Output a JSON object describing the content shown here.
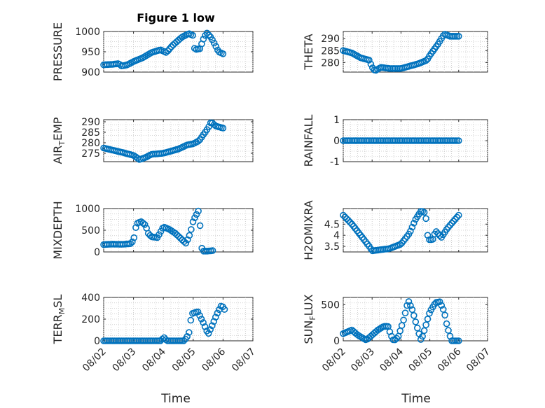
{
  "figure": {
    "title": "Figure 1 low"
  },
  "chart_data": [
    {
      "type": "scatter",
      "ylabel": "PRESSURE",
      "ylim": [
        900,
        1000
      ],
      "yticks": [
        900,
        950,
        1000
      ],
      "ytick_labels": [
        "900",
        "950",
        "1000"
      ],
      "xlim": [
        0,
        5
      ],
      "xticks": [
        0,
        1,
        2,
        3,
        4,
        5
      ],
      "xtick_labels": [
        "08/02",
        "08/03",
        "08/04",
        "08/05",
        "08/06",
        "08/07"
      ],
      "show_xticklabels": false,
      "grid": true,
      "marker": "circle-open",
      "knots": [
        [
          0,
          918
        ],
        [
          0.3,
          919
        ],
        [
          0.5,
          921
        ],
        [
          0.6,
          915
        ],
        [
          0.8,
          918
        ],
        [
          1.0,
          926
        ],
        [
          1.3,
          935
        ],
        [
          1.6,
          948
        ],
        [
          1.9,
          955
        ],
        [
          2.1,
          948
        ],
        [
          2.3,
          965
        ],
        [
          2.6,
          985
        ],
        [
          2.85,
          995
        ],
        [
          3.0,
          990
        ],
        [
          3.05,
          955
        ],
        [
          3.25,
          958
        ],
        [
          3.3,
          975
        ],
        [
          3.45,
          997
        ],
        [
          3.6,
          985
        ],
        [
          3.75,
          965
        ],
        [
          3.85,
          950
        ],
        [
          4.0,
          945
        ]
      ]
    },
    {
      "type": "scatter",
      "ylabel": "THETA",
      "ylim": [
        276,
        293
      ],
      "yticks": [
        280,
        285,
        290
      ],
      "ytick_labels": [
        "280",
        "285",
        "290"
      ],
      "xlim": [
        0,
        5
      ],
      "xticks": [
        0,
        1,
        2,
        3,
        4,
        5
      ],
      "xtick_labels": [
        "08/02",
        "08/03",
        "08/04",
        "08/05",
        "08/06",
        "08/07"
      ],
      "show_xticklabels": false,
      "grid": true,
      "marker": "circle-open",
      "knots": [
        [
          0,
          285
        ],
        [
          0.3,
          284
        ],
        [
          0.6,
          282
        ],
        [
          0.9,
          281
        ],
        [
          1.0,
          278
        ],
        [
          1.1,
          276.5
        ],
        [
          1.3,
          278
        ],
        [
          1.6,
          277.5
        ],
        [
          2.0,
          277.5
        ],
        [
          2.3,
          278.5
        ],
        [
          2.6,
          279.5
        ],
        [
          2.9,
          281
        ],
        [
          3.0,
          283
        ],
        [
          3.3,
          288
        ],
        [
          3.5,
          292
        ],
        [
          3.7,
          291
        ],
        [
          4.0,
          291
        ]
      ]
    },
    {
      "type": "scatter",
      "ylabel_main": "AIR",
      "ylabel_sub": "T",
      "ylabel_rest": "EMP",
      "ylim": [
        271,
        291
      ],
      "yticks": [
        275,
        280,
        285,
        290
      ],
      "ytick_labels": [
        "275",
        "280",
        "285",
        "290"
      ],
      "xlim": [
        0,
        5
      ],
      "xticks": [
        0,
        1,
        2,
        3,
        4,
        5
      ],
      "xtick_labels": [
        "08/02",
        "08/03",
        "08/04",
        "08/05",
        "08/06",
        "08/07"
      ],
      "show_xticklabels": false,
      "grid": true,
      "marker": "circle-open",
      "knots": [
        [
          0,
          277.5
        ],
        [
          0.3,
          276.5
        ],
        [
          0.6,
          275.5
        ],
        [
          1.0,
          274
        ],
        [
          1.2,
          272
        ],
        [
          1.4,
          273
        ],
        [
          1.6,
          274.5
        ],
        [
          2.0,
          275
        ],
        [
          2.5,
          277
        ],
        [
          2.8,
          279
        ],
        [
          3.0,
          279.5
        ],
        [
          3.2,
          281
        ],
        [
          3.5,
          287
        ],
        [
          3.6,
          290
        ],
        [
          3.75,
          288
        ],
        [
          4.0,
          287
        ]
      ]
    },
    {
      "type": "scatter",
      "ylabel": "RAINFALL",
      "ylim": [
        -1,
        1
      ],
      "yticks": [
        -1,
        0,
        1
      ],
      "ytick_labels": [
        "-1",
        "0",
        "1"
      ],
      "xlim": [
        0,
        5
      ],
      "xticks": [
        0,
        1,
        2,
        3,
        4,
        5
      ],
      "xtick_labels": [
        "08/02",
        "08/03",
        "08/04",
        "08/05",
        "08/06",
        "08/07"
      ],
      "show_xticklabels": false,
      "grid": true,
      "marker": "circle-open",
      "knots": [
        [
          0,
          0
        ],
        [
          4.0,
          0
        ]
      ]
    },
    {
      "type": "scatter",
      "ylabel": "MIXDEPTH",
      "ylim": [
        0,
        1000
      ],
      "yticks": [
        0,
        500,
        1000
      ],
      "ytick_labels": [
        "0",
        "500",
        "1000"
      ],
      "xlim": [
        0,
        5
      ],
      "xticks": [
        0,
        1,
        2,
        3,
        4,
        5
      ],
      "xtick_labels": [
        "08/02",
        "08/03",
        "08/04",
        "08/05",
        "08/06",
        "08/07"
      ],
      "show_xticklabels": false,
      "grid": true,
      "marker": "circle-open",
      "knots": [
        [
          0,
          170
        ],
        [
          0.3,
          180
        ],
        [
          0.6,
          175
        ],
        [
          0.9,
          190
        ],
        [
          1.0,
          260
        ],
        [
          1.1,
          650
        ],
        [
          1.25,
          700
        ],
        [
          1.4,
          620
        ],
        [
          1.5,
          420
        ],
        [
          1.6,
          350
        ],
        [
          1.8,
          330
        ],
        [
          2.0,
          580
        ],
        [
          2.2,
          520
        ],
        [
          2.4,
          430
        ],
        [
          2.6,
          300
        ],
        [
          2.75,
          200
        ],
        [
          2.85,
          330
        ],
        [
          2.95,
          560
        ],
        [
          3.0,
          720
        ],
        [
          3.1,
          850
        ],
        [
          3.2,
          980
        ],
        [
          3.25,
          380
        ],
        [
          3.3,
          20
        ],
        [
          3.5,
          20
        ],
        [
          3.65,
          30
        ]
      ]
    },
    {
      "type": "scatter",
      "ylabel": "H2OMIXRA",
      "ylim": [
        3.25,
        5.2
      ],
      "yticks": [
        3.5,
        4,
        4.5
      ],
      "ytick_labels": [
        "3.5",
        "4",
        "4.5"
      ],
      "xlim": [
        0,
        5
      ],
      "xticks": [
        0,
        1,
        2,
        3,
        4,
        5
      ],
      "xtick_labels": [
        "08/02",
        "08/03",
        "08/04",
        "08/05",
        "08/06",
        "08/07"
      ],
      "show_xticklabels": false,
      "grid": true,
      "marker": "circle-open",
      "knots": [
        [
          0,
          4.9
        ],
        [
          0.3,
          4.5
        ],
        [
          0.6,
          4.0
        ],
        [
          0.9,
          3.5
        ],
        [
          1.0,
          3.3
        ],
        [
          1.3,
          3.35
        ],
        [
          1.6,
          3.4
        ],
        [
          2.0,
          3.6
        ],
        [
          2.3,
          4.1
        ],
        [
          2.5,
          4.7
        ],
        [
          2.7,
          5.1
        ],
        [
          2.85,
          5.0
        ],
        [
          2.9,
          4.2
        ],
        [
          2.95,
          3.8
        ],
        [
          3.1,
          3.8
        ],
        [
          3.2,
          4.2
        ],
        [
          3.4,
          3.9
        ],
        [
          3.6,
          4.3
        ],
        [
          3.8,
          4.6
        ],
        [
          4.0,
          4.9
        ]
      ]
    },
    {
      "type": "scatter",
      "ylabel_main": "TERR",
      "ylabel_sub": "M",
      "ylabel_rest": "SL",
      "ylim": [
        0,
        400
      ],
      "yticks": [
        0,
        200,
        400
      ],
      "ytick_labels": [
        "0",
        "200",
        "400"
      ],
      "xlim": [
        0,
        5
      ],
      "xticks": [
        0,
        1,
        2,
        3,
        4,
        5
      ],
      "xtick_labels": [
        "08/02",
        "08/03",
        "08/04",
        "08/05",
        "08/06",
        "08/07"
      ],
      "show_xticklabels": true,
      "grid": true,
      "marker": "circle-open",
      "knots": [
        [
          0,
          0
        ],
        [
          1.9,
          0
        ],
        [
          2.05,
          35
        ],
        [
          2.1,
          0
        ],
        [
          2.7,
          0
        ],
        [
          2.85,
          60
        ],
        [
          2.95,
          250
        ],
        [
          3.15,
          270
        ],
        [
          3.35,
          160
        ],
        [
          3.5,
          60
        ],
        [
          3.65,
          150
        ],
        [
          3.8,
          250
        ],
        [
          3.95,
          330
        ],
        [
          4.05,
          290
        ]
      ]
    },
    {
      "type": "scatter",
      "ylabel_main": "SUN",
      "ylabel_sub": "F",
      "ylabel_rest": "LUX",
      "ylim": [
        0,
        600
      ],
      "yticks": [
        0,
        500
      ],
      "ytick_labels": [
        "0",
        "500"
      ],
      "xlim": [
        0,
        5
      ],
      "xticks": [
        0,
        1,
        2,
        3,
        4,
        5
      ],
      "xtick_labels": [
        "08/02",
        "08/03",
        "08/04",
        "08/05",
        "08/06",
        "08/07"
      ],
      "show_xticklabels": true,
      "grid": true,
      "marker": "circle-open",
      "knots": [
        [
          0,
          100
        ],
        [
          0.3,
          150
        ],
        [
          0.5,
          80
        ],
        [
          0.8,
          10
        ],
        [
          1.0,
          80
        ],
        [
          1.2,
          150
        ],
        [
          1.4,
          200
        ],
        [
          1.55,
          200
        ],
        [
          1.65,
          80
        ],
        [
          1.75,
          0
        ],
        [
          1.9,
          50
        ],
        [
          2.1,
          300
        ],
        [
          2.25,
          560
        ],
        [
          2.4,
          420
        ],
        [
          2.55,
          200
        ],
        [
          2.7,
          0
        ],
        [
          2.85,
          200
        ],
        [
          3.0,
          400
        ],
        [
          3.2,
          530
        ],
        [
          3.35,
          540
        ],
        [
          3.5,
          400
        ],
        [
          3.6,
          200
        ],
        [
          3.75,
          0
        ],
        [
          4.0,
          0
        ]
      ]
    }
  ],
  "xlabels": {
    "left": "Time",
    "right": "Time"
  },
  "colors": {
    "marker": "#0072BD",
    "axes": "#262626",
    "grid": "#c8c8c8",
    "background": "#ffffff"
  }
}
